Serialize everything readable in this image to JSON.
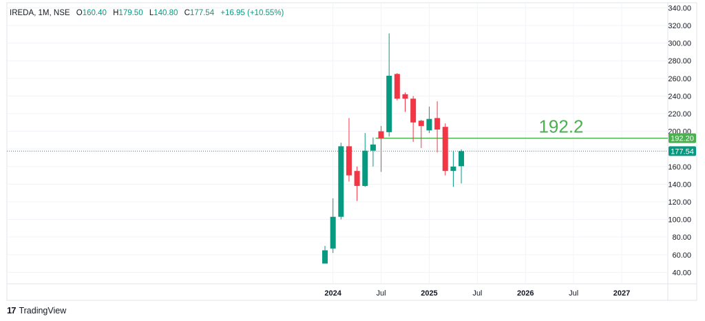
{
  "legend": {
    "symbol": "IREDA, 1M, NSE",
    "open_label": "O",
    "open": "160.40",
    "high_label": "H",
    "high": "179.50",
    "low_label": "L",
    "low": "140.80",
    "close_label": "C",
    "close": "177.54",
    "change": "+16.95 (+10.55%)"
  },
  "brand": {
    "logo": "17",
    "name": "TradingView"
  },
  "colors": {
    "up": "#089981",
    "down": "#f23645",
    "level": "#4caf50",
    "price_tag": "#089981"
  },
  "chart_data": {
    "type": "candlestick",
    "interval": "1M",
    "y_ticks": [
      "340.00",
      "320.00",
      "300.00",
      "280.00",
      "260.00",
      "240.00",
      "220.00",
      "200.00",
      "180.00",
      "160.00",
      "140.00",
      "120.00",
      "100.00",
      "80.00",
      "60.00",
      "40.00"
    ],
    "ylim": [
      27,
      345
    ],
    "x_ticks": [
      "2024",
      "Jul",
      "2025",
      "Jul",
      "2026",
      "Jul",
      "2027"
    ],
    "candles": [
      {
        "m": 0,
        "o": 50,
        "h": 70,
        "l": 50,
        "c": 65
      },
      {
        "m": 1,
        "o": 67,
        "h": 124,
        "l": 62,
        "c": 103
      },
      {
        "m": 2,
        "o": 103,
        "h": 187,
        "l": 100,
        "c": 183
      },
      {
        "m": 3,
        "o": 183,
        "h": 215,
        "l": 143,
        "c": 150
      },
      {
        "m": 4,
        "o": 155,
        "h": 160,
        "l": 121,
        "c": 138
      },
      {
        "m": 5,
        "o": 138,
        "h": 198,
        "l": 137,
        "c": 178
      },
      {
        "m": 6,
        "o": 178,
        "h": 193,
        "l": 160,
        "c": 185
      },
      {
        "m": 7,
        "o": 200,
        "h": 206,
        "l": 154,
        "c": 192
      },
      {
        "m": 8,
        "o": 199,
        "h": 311,
        "l": 194,
        "c": 263
      },
      {
        "m": 9,
        "o": 265,
        "h": 266,
        "l": 235,
        "c": 237
      },
      {
        "m": 10,
        "o": 242,
        "h": 244,
        "l": 222,
        "c": 237
      },
      {
        "m": 11,
        "o": 237,
        "h": 240,
        "l": 188,
        "c": 210
      },
      {
        "m": 12,
        "o": 212,
        "h": 213,
        "l": 181,
        "c": 206
      },
      {
        "m": 13,
        "o": 201,
        "h": 228,
        "l": 198,
        "c": 214
      },
      {
        "m": 14,
        "o": 215,
        "h": 234,
        "l": 176,
        "c": 202
      },
      {
        "m": 15,
        "o": 205,
        "h": 209,
        "l": 150,
        "c": 155
      },
      {
        "m": 16,
        "o": 155,
        "h": 178,
        "l": 137,
        "c": 160
      },
      {
        "m": 17,
        "o": 160.4,
        "h": 179.5,
        "l": 140.8,
        "c": 177.54
      }
    ],
    "level": {
      "value": 192.2,
      "start_month": 7,
      "label": "192.2",
      "tag": "192.20"
    },
    "last_price": {
      "value": 177.54,
      "tag": "177.54"
    }
  }
}
